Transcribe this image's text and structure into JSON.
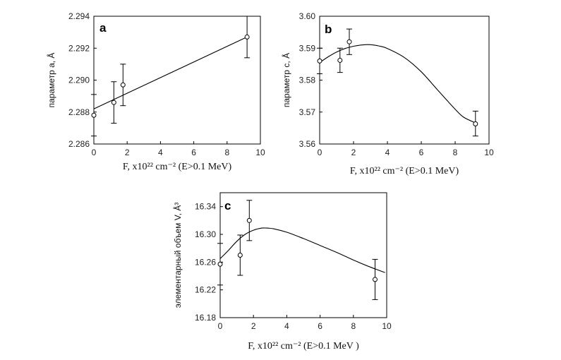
{
  "chart_data": [
    {
      "type": "scatter",
      "panel_label": "a",
      "xlabel": "F, x10²² cm⁻² (E>0.1 MeV)",
      "ylabel": "параметр  a, Å",
      "xlim": [
        0,
        10
      ],
      "ylim": [
        2.286,
        2.294
      ],
      "xticks": [
        "0",
        "2",
        "4",
        "6",
        "8",
        "10"
      ],
      "yticks": [
        "2.286",
        "2.288",
        "2.290",
        "2.292",
        "2.294"
      ],
      "points": [
        {
          "x": 0,
          "y": 2.2878,
          "ymin": 2.2865,
          "ymax": 2.2891
        },
        {
          "x": 1.2,
          "y": 2.2886,
          "ymin": 2.2873,
          "ymax": 2.2899
        },
        {
          "x": 1.75,
          "y": 2.2897,
          "ymin": 2.2884,
          "ymax": 2.291
        },
        {
          "x": 9.2,
          "y": 2.2927,
          "ymin": 2.2914,
          "ymax": 2.294
        }
      ],
      "fit": {
        "type": "linear",
        "x": [
          0,
          9.2
        ],
        "y": [
          2.2882,
          2.2927
        ]
      }
    },
    {
      "type": "scatter",
      "panel_label": "b",
      "xlabel": "F, x10²² cm⁻² (E>0.1 MeV)",
      "ylabel": "параметр c, Å",
      "xlim": [
        0,
        10
      ],
      "ylim": [
        3.56,
        3.6
      ],
      "xticks": [
        "0",
        "2",
        "4",
        "6",
        "8",
        "10"
      ],
      "yticks": [
        "3.56",
        "3.57",
        "3.58",
        "3.59",
        "3.60"
      ],
      "points": [
        {
          "x": 0,
          "y": 3.586,
          "ymin": 3.582,
          "ymax": 3.59
        },
        {
          "x": 1.2,
          "y": 3.5862,
          "ymin": 3.5824,
          "ymax": 3.59
        },
        {
          "x": 1.75,
          "y": 3.592,
          "ymin": 3.588,
          "ymax": 3.596
        },
        {
          "x": 9.2,
          "y": 3.5663,
          "ymin": 3.5625,
          "ymax": 3.5703
        }
      ],
      "fit": {
        "type": "curve",
        "x": [
          0,
          0.5,
          1,
          1.5,
          2,
          2.5,
          3,
          3.5,
          4,
          5,
          6,
          7,
          8,
          8.5,
          9.2
        ],
        "y": [
          3.5855,
          3.5873,
          3.5888,
          3.5899,
          3.5906,
          3.591,
          3.5911,
          3.5907,
          3.5899,
          3.5871,
          3.5826,
          3.5767,
          3.5709,
          3.5684,
          3.5666
        ]
      }
    },
    {
      "type": "scatter",
      "panel_label": "c",
      "xlabel": "F, x10²² cm⁻² (E>0.1 MeV )",
      "ylabel": "элементарный объем  V, Å³",
      "xlim": [
        0,
        10
      ],
      "ylim": [
        16.18,
        16.36
      ],
      "xticks": [
        "0",
        "2",
        "4",
        "6",
        "8",
        "10"
      ],
      "yticks": [
        "16.18",
        "16.22",
        "16.26",
        "16.30",
        "16.34"
      ],
      "points": [
        {
          "x": 0,
          "y": 16.257,
          "ymin": 16.227,
          "ymax": 16.287
        },
        {
          "x": 1.2,
          "y": 16.27,
          "ymin": 16.241,
          "ymax": 16.299
        },
        {
          "x": 1.75,
          "y": 16.32,
          "ymin": 16.291,
          "ymax": 16.349
        },
        {
          "x": 9.3,
          "y": 16.235,
          "ymin": 16.206,
          "ymax": 16.264
        }
      ],
      "fit": {
        "type": "curve",
        "x": [
          0,
          0.5,
          1,
          1.5,
          2,
          2.5,
          2.8,
          3.2,
          4,
          5,
          6,
          7,
          8,
          9,
          9.9
        ],
        "y": [
          16.265,
          16.277,
          16.29,
          16.3,
          16.306,
          16.309,
          16.309,
          16.308,
          16.303,
          16.294,
          16.284,
          16.274,
          16.263,
          16.253,
          16.245
        ]
      }
    }
  ]
}
